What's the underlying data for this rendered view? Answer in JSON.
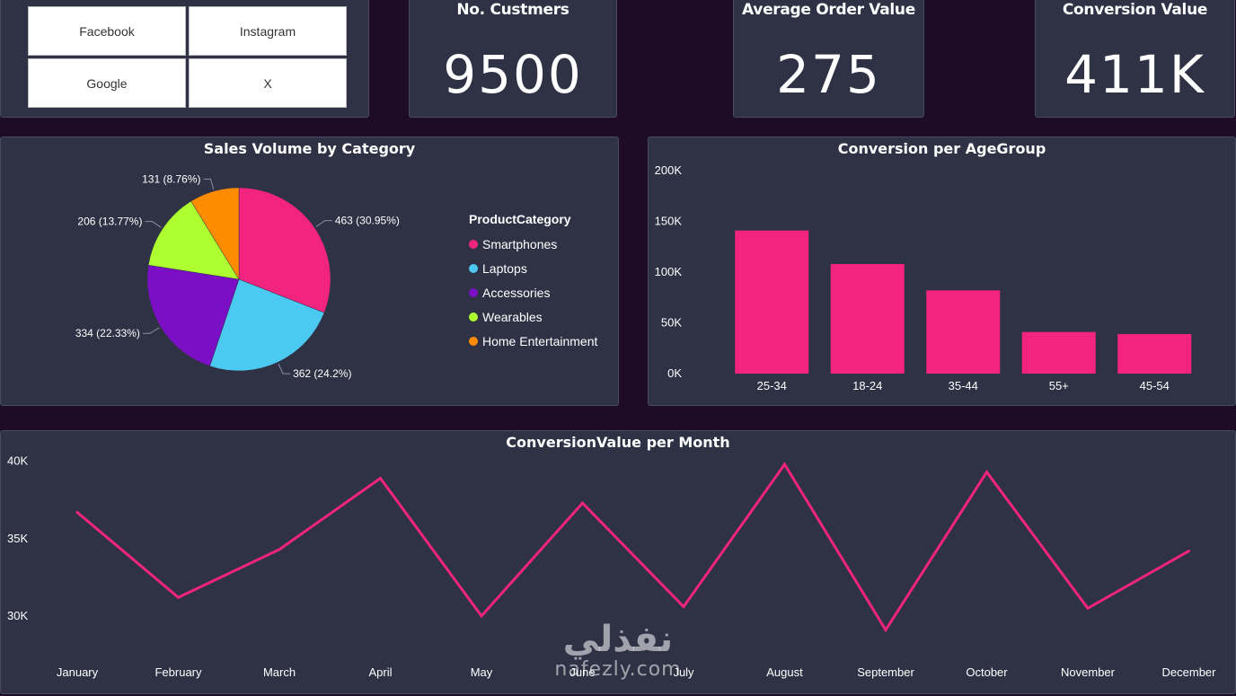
{
  "slicer": {
    "buttons": [
      "Facebook",
      "Instagram",
      "Google",
      "X"
    ]
  },
  "kpis": [
    {
      "title": "No. Custmers",
      "value": "9500"
    },
    {
      "title": "Average Order Value",
      "value": "275"
    },
    {
      "title": "Conversion Value",
      "value": "411K"
    }
  ],
  "pie_chart": {
    "title": "Sales Volume by Category",
    "legend_title": "ProductCategory"
  },
  "bar_chart": {
    "title": "Conversion per AgeGroup"
  },
  "line_chart": {
    "title": "ConversionValue per Month"
  },
  "watermark": {
    "arabic": "نفذلي",
    "latin": "nafezly.com"
  },
  "colors": {
    "background": "#1e0b24",
    "card": "#2f3145",
    "accent": "#f2247f"
  },
  "chart_data": [
    {
      "type": "pie",
      "title": "Sales Volume by Category",
      "legend_title": "ProductCategory",
      "legend_placement": "right",
      "categories": [
        "Smartphones",
        "Laptops",
        "Accessories",
        "Wearables",
        "Home Entertainment"
      ],
      "values": [
        463,
        362,
        334,
        206,
        131
      ],
      "data_labels": [
        "463 (30.95%)",
        "362 (24.2%)",
        "334 (22.33%)",
        "206 (13.77%)",
        "131 (8.76%)"
      ],
      "colors": [
        "#f2247f",
        "#4cc9f0",
        "#7b0fc5",
        "#adff2f",
        "#ff8c00"
      ]
    },
    {
      "type": "bar",
      "title": "Conversion per AgeGroup",
      "categories": [
        "25-34",
        "18-24",
        "35-44",
        "55+",
        "45-54"
      ],
      "values": [
        141000,
        108000,
        82000,
        41000,
        39000
      ],
      "yticks": [
        0,
        50000,
        100000,
        150000,
        200000
      ],
      "ytick_labels": [
        "0K",
        "50K",
        "100K",
        "150K",
        "200K"
      ],
      "ylim": [
        0,
        200000
      ],
      "color": "#f2247f",
      "grid": false
    },
    {
      "type": "line",
      "title": "ConversionValue per Month",
      "categories": [
        "January",
        "February",
        "March",
        "April",
        "May",
        "June",
        "July",
        "August",
        "September",
        "October",
        "November",
        "December"
      ],
      "values": [
        36700,
        31200,
        34300,
        38900,
        30000,
        37300,
        30600,
        39800,
        29100,
        39300,
        30500,
        34200
      ],
      "yticks": [
        30000,
        35000,
        40000
      ],
      "ytick_labels": [
        "30K",
        "35K",
        "40K"
      ],
      "ylim": [
        27500,
        40500
      ],
      "color": "#f2247f",
      "grid": false
    }
  ]
}
